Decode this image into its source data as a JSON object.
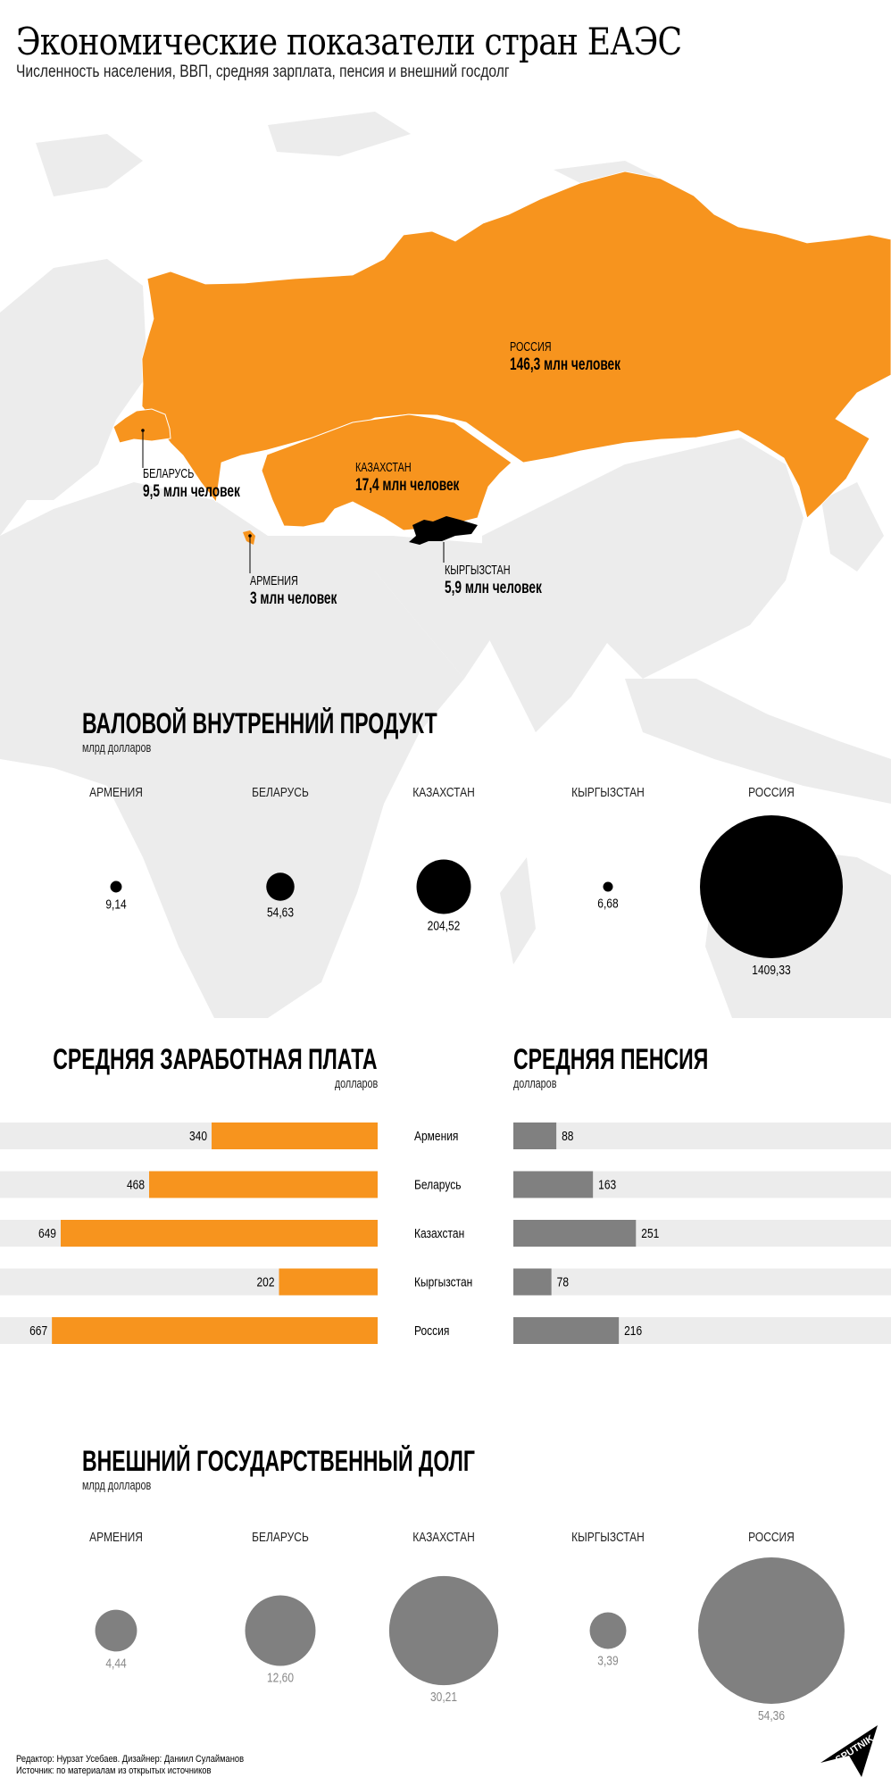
{
  "header": {
    "title": "Экономические показатели стран ЕАЭС",
    "subtitle": "Численность населения, ВВП, средняя зарплата, пенсия и внешний госдолг"
  },
  "map": {
    "highlight_color": "#f7941e",
    "kyrgyzstan_color": "#000000",
    "land_color": "#ececec",
    "labels": [
      {
        "country": "РОССИЯ",
        "population": "146,3 млн человек"
      },
      {
        "country": "КАЗАХСТАН",
        "population": "17,4 млн человек"
      },
      {
        "country": "БЕЛАРУСЬ",
        "population": "9,5 млн человек"
      },
      {
        "country": "АРМЕНИЯ",
        "population": "3 млн человек"
      },
      {
        "country": "КЫРГЫЗСТАН",
        "population": "5,9 млн человек"
      }
    ]
  },
  "chart_data": [
    {
      "type": "bubble",
      "title": "ВАЛОВОЙ ВНУТРЕННИЙ ПРОДУКТ",
      "subtitle": "млрд долларов",
      "categories": [
        "АРМЕНИЯ",
        "БЕЛАРУСЬ",
        "КАЗАХСТАН",
        "КЫРГЫЗСТАН",
        "РОССИЯ"
      ],
      "values": [
        9.14,
        54.63,
        204.52,
        6.68,
        1409.33
      ],
      "value_labels": [
        "9,14",
        "54,63",
        "204,52",
        "6,68",
        "1409,33"
      ],
      "color": "#000000"
    },
    {
      "type": "bar",
      "title": "СРЕДНЯЯ ЗАРАБОТНАЯ ПЛАТА",
      "subtitle": "долларов",
      "categories": [
        "Армения",
        "Беларусь",
        "Казахстан",
        "Кыргызстан",
        "Россия"
      ],
      "values": [
        340,
        468,
        649,
        202,
        667
      ],
      "color": "#f7941e",
      "orientation": "horizontal-leftward"
    },
    {
      "type": "bar",
      "title": "СРЕДНЯЯ ПЕНСИЯ",
      "subtitle": "долларов",
      "categories": [
        "Армения",
        "Беларусь",
        "Казахстан",
        "Кыргызстан",
        "Россия"
      ],
      "values": [
        88,
        163,
        251,
        78,
        216
      ],
      "color": "#808080",
      "orientation": "horizontal"
    },
    {
      "type": "bubble",
      "title": "ВНЕШНИЙ ГОСУДАРСТВЕННЫЙ ДОЛГ",
      "subtitle": "млрд долларов",
      "categories": [
        "АРМЕНИЯ",
        "БЕЛАРУСЬ",
        "КАЗАХСТАН",
        "КЫРГЫЗСТАН",
        "РОССИЯ"
      ],
      "values": [
        4.44,
        12.6,
        30.21,
        3.39,
        54.36
      ],
      "value_labels": [
        "4,44",
        "12,60",
        "30,21",
        "3,39",
        "54,36"
      ],
      "color": "#808080"
    }
  ],
  "footer": {
    "line1": "Редактор: Нурзат Усебаев. Дизайнер: Даниил Сулайманов",
    "line2": "Источник: по материалам из открытых источников",
    "logo": "SPUTNIK"
  }
}
